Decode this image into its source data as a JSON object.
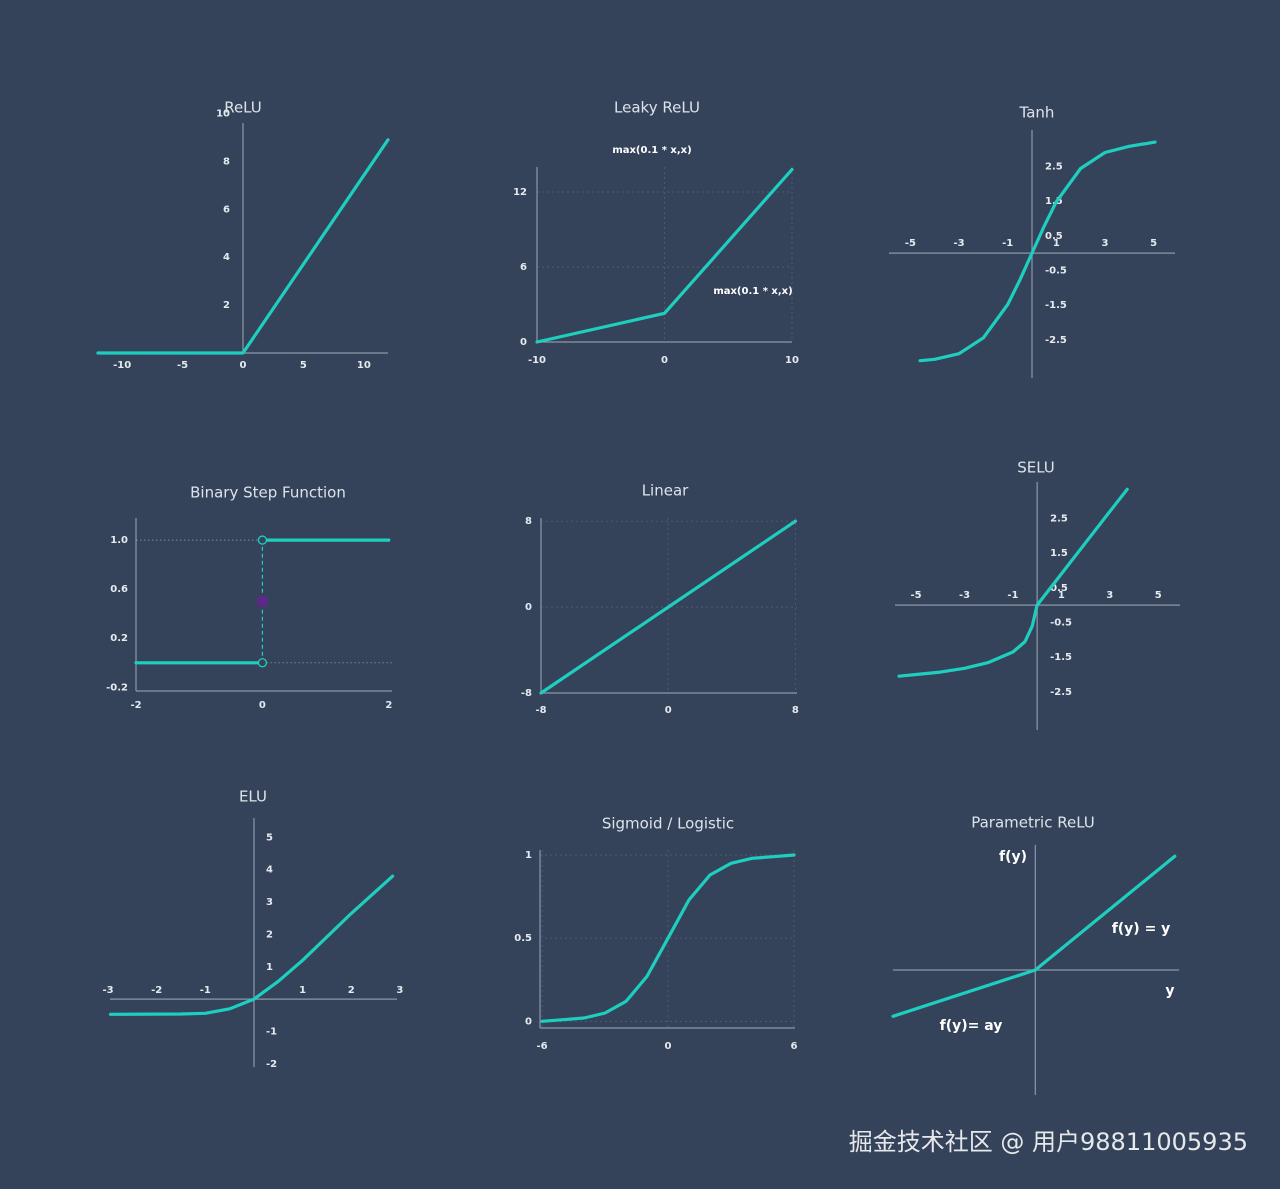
{
  "chart_data": [
    {
      "type": "line",
      "title": "ReLU",
      "x": [
        -12,
        0,
        12
      ],
      "values": [
        0,
        0,
        8.9
      ],
      "color": "#1ecfbf",
      "xlim": [
        -12,
        12
      ],
      "ylim": [
        0,
        9.6
      ],
      "xticks": [
        -10,
        -5,
        0,
        5,
        10
      ],
      "yticks": [
        2,
        4,
        6,
        8,
        10
      ],
      "grid": false
    },
    {
      "type": "line",
      "title": "Leaky ReLU",
      "subtitle": "max(0.1 * x,x)",
      "annotations": [
        "max(0.1 * x,x)"
      ],
      "x": [
        -10,
        0,
        10
      ],
      "values": [
        0,
        2.3,
        13.8
      ],
      "color": "#1ecfbf",
      "xlim": [
        -10,
        10
      ],
      "ylim": [
        0,
        14
      ],
      "xticks": [
        -10,
        0,
        10
      ],
      "yticks": [
        0,
        6,
        12
      ],
      "grid": true
    },
    {
      "type": "line",
      "title": "Tanh",
      "x": [
        -4.6,
        -4,
        -3,
        -2,
        -1,
        -0.5,
        0,
        0.5,
        1,
        2,
        3,
        4,
        5.06
      ],
      "values": [
        -3.1,
        -3.06,
        -2.9,
        -2.44,
        -1.48,
        -0.78,
        0,
        0.78,
        1.48,
        2.44,
        2.9,
        3.08,
        3.2
      ],
      "color": "#1ecfbf",
      "xlim": [
        -5.88,
        5.88
      ],
      "ylim": [
        -3.6,
        3.55
      ],
      "xticks": [
        -5,
        -3,
        -1,
        1,
        3,
        5
      ],
      "yticks": [
        2.5,
        1.5,
        0.5,
        -0.5,
        -1.5,
        -2.5
      ],
      "grid": false
    },
    {
      "type": "line",
      "title": "Binary Step Function",
      "x": [
        -2,
        0,
        0,
        0,
        2
      ],
      "values": [
        0,
        0,
        null,
        1,
        1
      ],
      "color": "#1ecfbf",
      "points": [
        {
          "x": 0,
          "y": 0.5,
          "color": "#5b2a86"
        }
      ],
      "xlim": [
        -2,
        2.05
      ],
      "ylim": [
        -0.23,
        1.18
      ],
      "xticks": [
        -2,
        0,
        2
      ],
      "yticks": [
        {
          "value": 1,
          "label": "1.0"
        },
        0.6,
        0.2,
        -0.2
      ],
      "grid": false
    },
    {
      "type": "line",
      "title": "Linear",
      "x": [
        -8,
        8
      ],
      "values": [
        -8,
        8
      ],
      "color": "#1ecfbf",
      "xlim": [
        -8,
        8.1
      ],
      "ylim": [
        -8,
        8.3
      ],
      "xticks": [
        -8,
        0,
        8
      ],
      "yticks": [
        8,
        0,
        -8
      ],
      "grid": true
    },
    {
      "type": "line",
      "title": "SELU",
      "x": [
        -5.7,
        -5,
        -4,
        -3,
        -2,
        -1,
        -0.5,
        -0.2,
        0,
        1,
        2,
        3,
        3.72
      ],
      "values": [
        -2.05,
        -2.0,
        -1.93,
        -1.82,
        -1.65,
        -1.35,
        -1.05,
        -0.6,
        0,
        0.9,
        1.8,
        2.7,
        3.34
      ],
      "color": "#1ecfbf",
      "xlim": [
        -5.87,
        5.9
      ],
      "ylim": [
        -3.6,
        3.55
      ],
      "xticks": [
        -5,
        -3,
        -1,
        1,
        3,
        5
      ],
      "yticks": [
        2.5,
        1.5,
        0.5,
        -0.5,
        -1.5,
        -2.5
      ],
      "grid": false
    },
    {
      "type": "line",
      "title": "ELU",
      "x": [
        -2.95,
        -1.5,
        -1,
        -0.5,
        0,
        0.5,
        1,
        2,
        2.85
      ],
      "values": [
        -0.47,
        -0.46,
        -0.44,
        -0.3,
        0,
        0.55,
        1.2,
        2.65,
        3.8
      ],
      "color": "#1ecfbf",
      "xlim": [
        -2.96,
        2.94
      ],
      "ylim": [
        -2.1,
        5.6
      ],
      "xticks": [
        -3,
        -2,
        -1,
        1,
        2,
        3
      ],
      "yticks": [
        5,
        4,
        3,
        2,
        1,
        -1,
        -2
      ],
      "grid": false
    },
    {
      "type": "line",
      "title": "Sigmoid / Logistic",
      "x": [
        -6,
        -5,
        -4,
        -3,
        -2,
        -1,
        0,
        1,
        2,
        3,
        4,
        5,
        6
      ],
      "values": [
        0,
        0.01,
        0.02,
        0.05,
        0.12,
        0.27,
        0.5,
        0.73,
        0.88,
        0.95,
        0.98,
        0.99,
        1
      ],
      "color": "#1ecfbf",
      "xlim": [
        -6.1,
        6.05
      ],
      "ylim": [
        -0.04,
        1.03
      ],
      "xticks": [
        -6,
        0,
        6
      ],
      "yticks": [
        1,
        0.5,
        0
      ],
      "grid": true
    },
    {
      "type": "line",
      "title": "Parametric ReLU",
      "x_label": "y",
      "y_label": "f(y)",
      "annotations": [
        "f(y) = y",
        "f(y)= ay"
      ],
      "x": [
        -1.02,
        0,
        1
      ],
      "values": [
        -0.33,
        0,
        0.81
      ],
      "color": "#1ecfbf",
      "xlim": [
        -1.02,
        1.03
      ],
      "ylim": [
        -0.89,
        0.89
      ],
      "xticks": [],
      "yticks": [],
      "grid": false
    }
  ],
  "watermark": "掘金技术社区 @ 用户98811005935"
}
